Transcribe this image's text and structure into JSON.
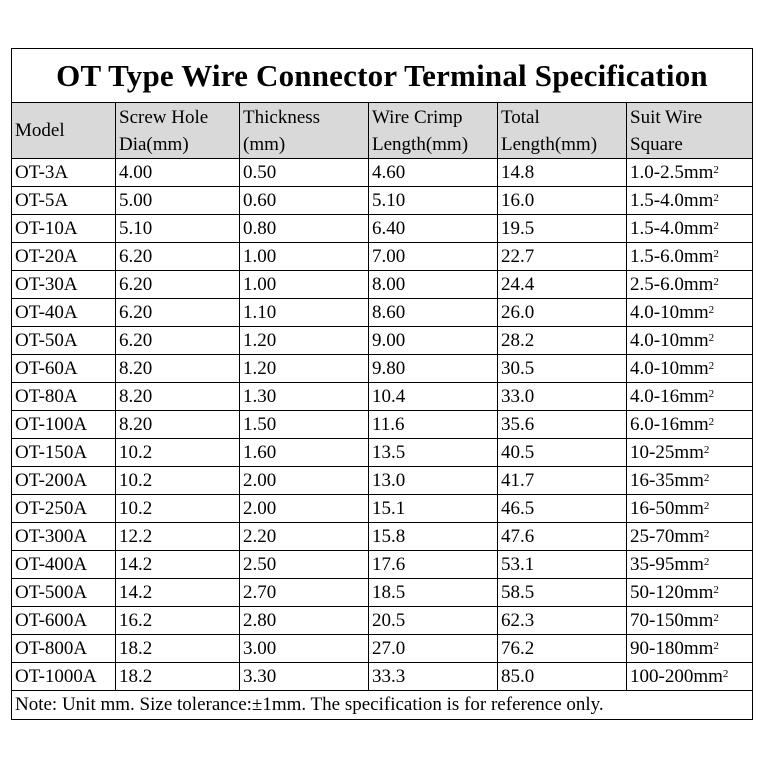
{
  "title": "OT Type Wire Connector Terminal Specification",
  "columns": [
    {
      "lines": [
        "Model"
      ]
    },
    {
      "lines": [
        "Screw Hole",
        "Dia(mm)"
      ]
    },
    {
      "lines": [
        "Thickness",
        "(mm)"
      ]
    },
    {
      "lines": [
        "Wire Crimp",
        "Length(mm)"
      ]
    },
    {
      "lines": [
        "Total",
        "Length(mm)"
      ]
    },
    {
      "lines": [
        "Suit Wire",
        "Square"
      ]
    }
  ],
  "unit_suffix": "mm²",
  "rows": [
    [
      "OT-3A",
      "4.00",
      "0.50",
      "4.60",
      "14.8",
      "1.0-2.5mm²"
    ],
    [
      "OT-5A",
      "5.00",
      "0.60",
      "5.10",
      "16.0",
      "1.5-4.0mm²"
    ],
    [
      "OT-10A",
      "5.10",
      "0.80",
      "6.40",
      "19.5",
      "1.5-4.0mm²"
    ],
    [
      "OT-20A",
      "6.20",
      "1.00",
      "7.00",
      "22.7",
      "1.5-6.0mm²"
    ],
    [
      "OT-30A",
      "6.20",
      "1.00",
      "8.00",
      "24.4",
      "2.5-6.0mm²"
    ],
    [
      "OT-40A",
      "6.20",
      "1.10",
      "8.60",
      "26.0",
      "4.0-10mm²"
    ],
    [
      "OT-50A",
      "6.20",
      "1.20",
      "9.00",
      "28.2",
      "4.0-10mm²"
    ],
    [
      "OT-60A",
      "8.20",
      "1.20",
      "9.80",
      "30.5",
      "4.0-10mm²"
    ],
    [
      "OT-80A",
      "8.20",
      "1.30",
      "10.4",
      "33.0",
      "4.0-16mm²"
    ],
    [
      "OT-100A",
      "8.20",
      "1.50",
      "11.6",
      "35.6",
      "6.0-16mm²"
    ],
    [
      "OT-150A",
      "10.2",
      "1.60",
      "13.5",
      "40.5",
      "10-25mm²"
    ],
    [
      "OT-200A",
      "10.2",
      "2.00",
      "13.0",
      "41.7",
      "16-35mm²"
    ],
    [
      "OT-250A",
      "10.2",
      "2.00",
      "15.1",
      "46.5",
      "16-50mm²"
    ],
    [
      "OT-300A",
      "12.2",
      "2.20",
      "15.8",
      "47.6",
      "25-70mm²"
    ],
    [
      "OT-400A",
      "14.2",
      "2.50",
      "17.6",
      "53.1",
      "35-95mm²"
    ],
    [
      "OT-500A",
      "14.2",
      "2.70",
      "18.5",
      "58.5",
      "50-120mm²"
    ],
    [
      "OT-600A",
      "16.2",
      "2.80",
      "20.5",
      "62.3",
      "70-150mm²"
    ],
    [
      "OT-800A",
      "18.2",
      "3.00",
      "27.0",
      "76.2",
      "90-180mm²"
    ],
    [
      "OT-1000A",
      "18.2",
      "3.30",
      "33.3",
      "85.0",
      "100-200mm²"
    ]
  ],
  "note": "Note: Unit mm. Size tolerance:±1mm. The specification is for reference only.",
  "colors": {
    "header_bg": "#d9d9d9",
    "border": "#000000",
    "background": "#ffffff"
  }
}
